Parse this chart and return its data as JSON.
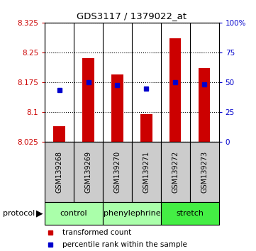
{
  "title": "GDS3117 / 1379022_at",
  "samples": [
    "GSM139268",
    "GSM139269",
    "GSM139270",
    "GSM139271",
    "GSM139272",
    "GSM139273"
  ],
  "bar_values": [
    8.065,
    8.235,
    8.195,
    8.095,
    8.285,
    8.21
  ],
  "blue_values": [
    8.155,
    8.175,
    8.168,
    8.158,
    8.175,
    8.17
  ],
  "bar_color": "#cc0000",
  "blue_color": "#0000cc",
  "ymin": 8.025,
  "ymax": 8.325,
  "yticks": [
    8.025,
    8.1,
    8.175,
    8.25,
    8.325
  ],
  "ytick_labels": [
    "8.025",
    "8.1",
    "8.175",
    "8.25",
    "8.325"
  ],
  "y2ticks": [
    0,
    25,
    50,
    75,
    100
  ],
  "y2tick_labels": [
    "0",
    "25",
    "50",
    "75",
    "100%"
  ],
  "group_positions": [
    {
      "label": "control",
      "start": 0,
      "end": 2,
      "color": "#aaffaa"
    },
    {
      "label": "phenylephrine",
      "start": 2,
      "end": 4,
      "color": "#aaffaa"
    },
    {
      "label": "stretch",
      "start": 4,
      "end": 6,
      "color": "#44ee44"
    }
  ],
  "background_plot": "#ffffff",
  "background_sample": "#cccccc",
  "border_color": "#000000",
  "bar_width": 0.4
}
